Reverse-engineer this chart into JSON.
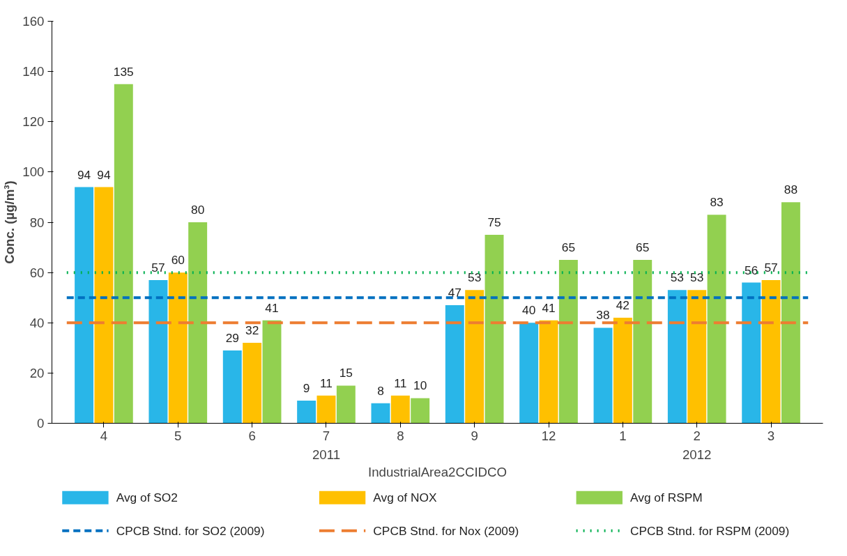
{
  "chart_data": {
    "type": "bar",
    "ylabel": "Conc. (µg/m³)",
    "xlabel": "IndustrialArea2CCIDCO",
    "categories": [
      "4",
      "5",
      "6",
      "7",
      "8",
      "9",
      "12",
      "1",
      "2",
      "3"
    ],
    "series": [
      {
        "name": "Avg of SO2",
        "color": "#29b6e8",
        "values": [
          94,
          57,
          29,
          9,
          8,
          47,
          40,
          38,
          53,
          56
        ]
      },
      {
        "name": "Avg of NOX",
        "color": "#ffc000",
        "values": [
          94,
          60,
          32,
          11,
          11,
          53,
          41,
          42,
          53,
          57
        ]
      },
      {
        "name": "Avg of RSPM",
        "color": "#92d050",
        "values": [
          135,
          80,
          41,
          15,
          10,
          75,
          65,
          65,
          83,
          88
        ]
      }
    ],
    "annotations": [
      "2011",
      "2012"
    ],
    "ref_lines": [
      {
        "axis": "y",
        "value": 50,
        "label": "CPCB Stnd. for SO2 (2009)",
        "color": "#0070c0",
        "line_style": "dashed"
      },
      {
        "axis": "y",
        "value": 40,
        "label": "CPCB Stnd. for Nox (2009)",
        "color": "#ed7d31",
        "line_style": "longdash"
      },
      {
        "axis": "y",
        "value": 60,
        "label": "CPCB Stnd. for RSPM (2009)",
        "color": "#00b050",
        "line_style": "dotted"
      }
    ],
    "ylim": [
      0,
      160
    ],
    "yticks": [
      0,
      20,
      40,
      60,
      80,
      100,
      120,
      140,
      160
    ],
    "data_labels": true,
    "grid": false,
    "legend": "bottom"
  }
}
